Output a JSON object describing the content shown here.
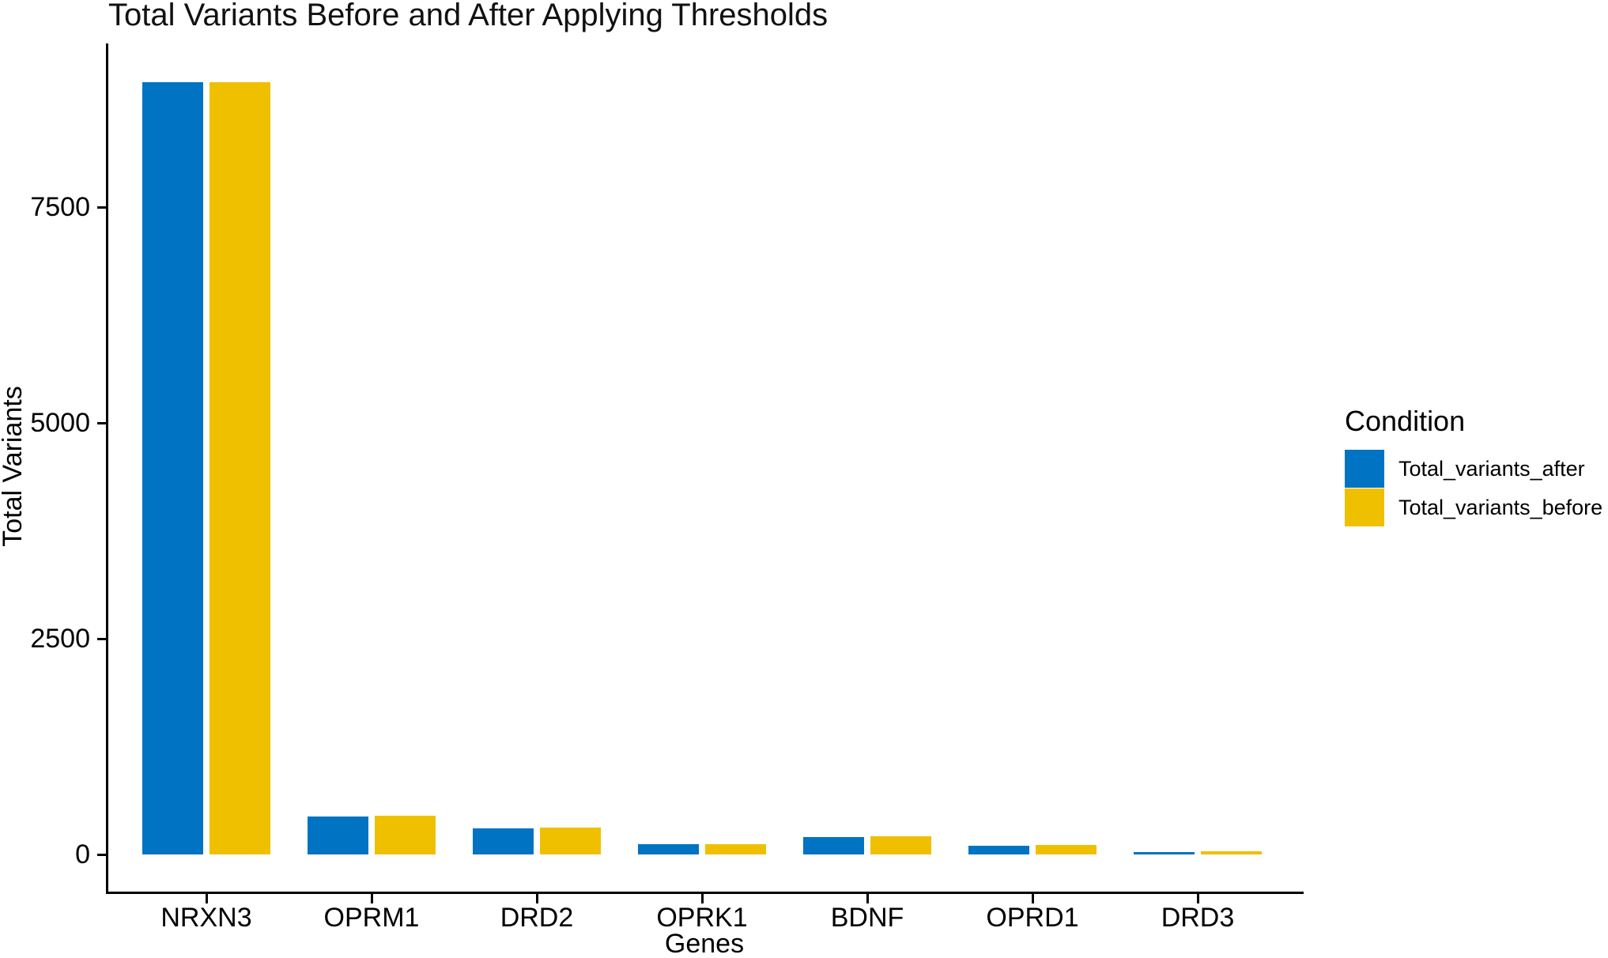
{
  "figure": {
    "background_color": "#FFFFFF",
    "text_color": "#000000",
    "axis_line_color": "#000000"
  },
  "legend": {
    "title": "Condition",
    "entries": [
      {
        "label": "Total_variants_after",
        "color": "#0073C2"
      },
      {
        "label": "Total_variants_before",
        "color": "#EFC000"
      }
    ]
  },
  "chart_data": {
    "type": "bar",
    "grouped": true,
    "title": "Total Variants Before and After Applying Thresholds",
    "xlabel": "Genes",
    "ylabel": "Total Variants",
    "categories": [
      "NRXN3",
      "OPRM1",
      "DRD2",
      "OPRK1",
      "BDNF",
      "OPRD1",
      "DRD3"
    ],
    "series": [
      {
        "name": "Total_variants_after",
        "color": "#0073C2",
        "values": [
          8950,
          440,
          300,
          115,
          205,
          105,
          30
        ]
      },
      {
        "name": "Total_variants_before",
        "color": "#EFC000",
        "values": [
          8950,
          450,
          310,
          120,
          215,
          110,
          35
        ]
      }
    ],
    "y_ticks": [
      0,
      2500,
      5000,
      7500
    ],
    "ylim": [
      0,
      9400
    ],
    "grid": false,
    "legend_position": "right"
  }
}
